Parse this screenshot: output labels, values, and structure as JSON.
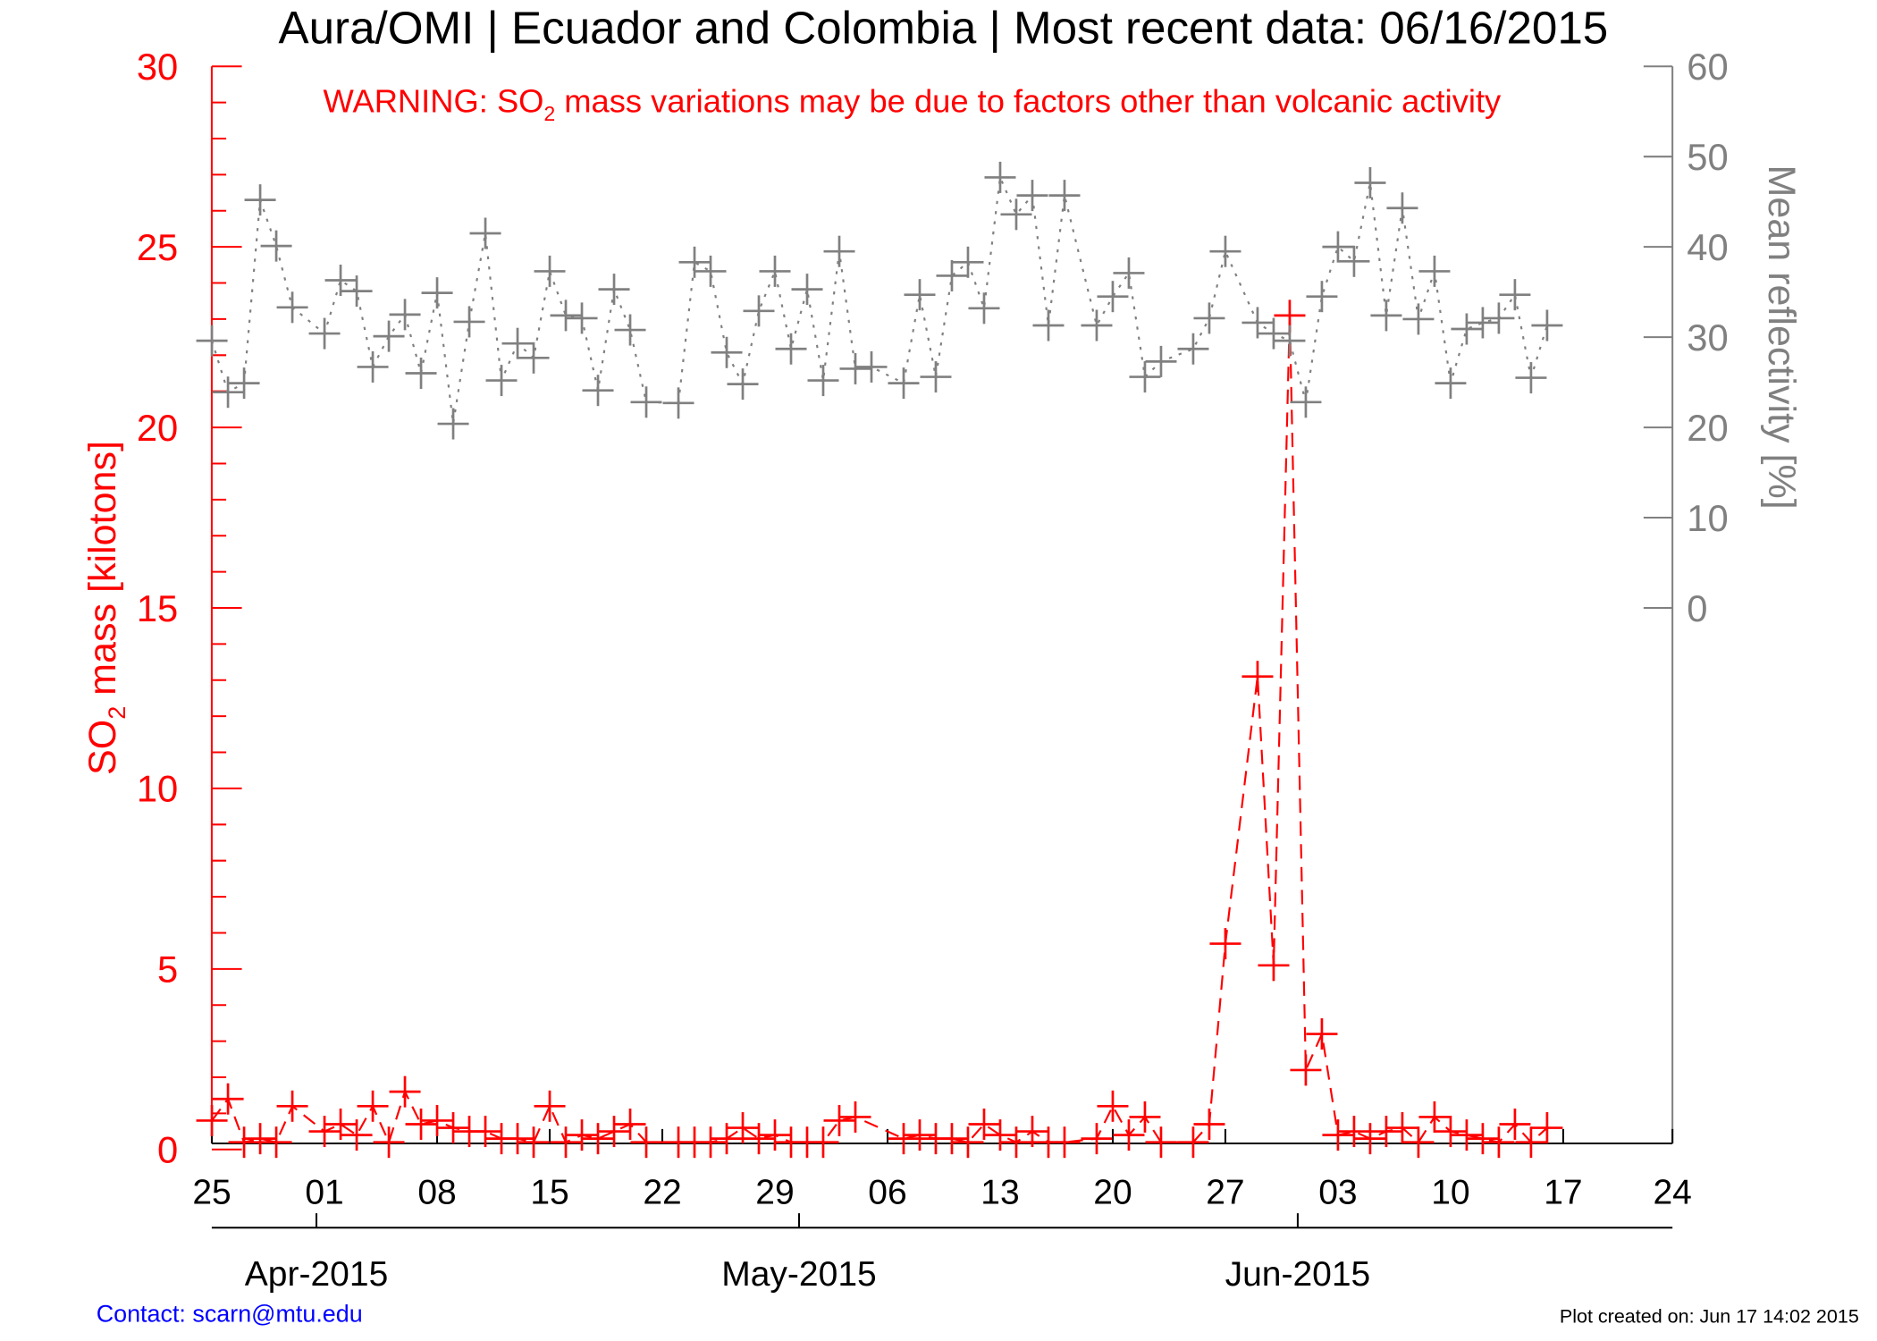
{
  "title": "Aura/OMI | Ecuador and Colombia | Most recent data: 06/16/2015",
  "warning": {
    "prefix": "WARNING: SO",
    "sub": "2",
    "suffix": " mass variations may be due to factors other than volcanic activity"
  },
  "contact": "Contact: scarn@mtu.edu",
  "plot_created": "Plot created on: Jun 17 14:02 2015",
  "colors": {
    "so2": "#ff0000",
    "reflectivity": "#808080",
    "contact": "#0000ff",
    "text": "#000000"
  },
  "chart_data": {
    "type": "line",
    "xlim": [
      "2015-03-25",
      "2015-06-24"
    ],
    "x_tick_labels": [
      "25",
      "01",
      "08",
      "15",
      "22",
      "29",
      "06",
      "13",
      "20",
      "27",
      "03",
      "10",
      "17",
      "24"
    ],
    "x_tick_dates": [
      "2015-03-25",
      "2015-04-01",
      "2015-04-08",
      "2015-04-15",
      "2015-04-22",
      "2015-04-29",
      "2015-05-06",
      "2015-05-13",
      "2015-05-20",
      "2015-05-27",
      "2015-06-03",
      "2015-06-10",
      "2015-06-17",
      "2015-06-24"
    ],
    "month_labels": [
      {
        "label": "Apr-2015",
        "date": "2015-04-01"
      },
      {
        "label": "May-2015",
        "date": "2015-05-01"
      },
      {
        "label": "Jun-2015",
        "date": "2015-06-01"
      }
    ],
    "left_axis": {
      "label_prefix": "SO",
      "label_sub": "2",
      "label_suffix": " mass [kilotons]",
      "ylim": [
        -0.17,
        30
      ],
      "tick_labels": [
        "0",
        "5",
        "10",
        "15",
        "20",
        "25",
        "30"
      ],
      "tick_values": [
        0,
        5,
        10,
        15,
        20,
        25,
        30
      ],
      "minor_step": 1
    },
    "right_axis": {
      "label": "Mean reflectivity [%]",
      "ylim": [
        -60,
        60
      ],
      "tick_labels": [
        "0",
        "10",
        "20",
        "30",
        "40",
        "50",
        "60"
      ],
      "tick_values": [
        0,
        10,
        20,
        30,
        40,
        50,
        60
      ]
    },
    "grid": false,
    "series": [
      {
        "axis": "left",
        "style": "dashed",
        "marker": "plus",
        "color": "#ff0000",
        "points": [
          [
            "2015-03-25",
            0.8
          ],
          [
            "2015-03-26",
            1.4
          ],
          [
            "2015-03-27",
            0.2
          ],
          [
            "2015-03-28",
            0.3
          ],
          [
            "2015-03-29",
            0.2
          ],
          [
            "2015-03-30",
            1.2
          ],
          [
            "2015-04-01",
            0.5
          ],
          [
            "2015-04-02",
            0.7
          ],
          [
            "2015-04-03",
            0.4
          ],
          [
            "2015-04-04",
            1.2
          ],
          [
            "2015-04-05",
            0.2
          ],
          [
            "2015-04-06",
            1.6
          ],
          [
            "2015-04-07",
            0.7
          ],
          [
            "2015-04-08",
            0.8
          ],
          [
            "2015-04-09",
            0.6
          ],
          [
            "2015-04-10",
            0.5
          ],
          [
            "2015-04-11",
            0.5
          ],
          [
            "2015-04-12",
            0.3
          ],
          [
            "2015-04-13",
            0.3
          ],
          [
            "2015-04-14",
            0.2
          ],
          [
            "2015-04-15",
            1.2
          ],
          [
            "2015-04-16",
            0.2
          ],
          [
            "2015-04-17",
            0.4
          ],
          [
            "2015-04-18",
            0.3
          ],
          [
            "2015-04-19",
            0.5
          ],
          [
            "2015-04-20",
            0.7
          ],
          [
            "2015-04-21",
            0.2
          ],
          [
            "2015-04-23",
            0.2
          ],
          [
            "2015-04-24",
            0.2
          ],
          [
            "2015-04-25",
            0.2
          ],
          [
            "2015-04-26",
            0.3
          ],
          [
            "2015-04-27",
            0.6
          ],
          [
            "2015-04-28",
            0.3
          ],
          [
            "2015-04-29",
            0.4
          ],
          [
            "2015-04-30",
            0.2
          ],
          [
            "2015-05-01",
            0.2
          ],
          [
            "2015-05-02",
            0.2
          ],
          [
            "2015-05-03",
            0.8
          ],
          [
            "2015-05-04",
            0.9
          ],
          [
            "2015-05-07",
            0.3
          ],
          [
            "2015-05-08",
            0.4
          ],
          [
            "2015-05-09",
            0.3
          ],
          [
            "2015-05-10",
            0.3
          ],
          [
            "2015-05-11",
            0.2
          ],
          [
            "2015-05-12",
            0.7
          ],
          [
            "2015-05-13",
            0.4
          ],
          [
            "2015-05-14",
            0.2
          ],
          [
            "2015-05-15",
            0.5
          ],
          [
            "2015-05-16",
            0.2
          ],
          [
            "2015-05-17",
            0.2
          ],
          [
            "2015-05-19",
            0.3
          ],
          [
            "2015-05-20",
            1.2
          ],
          [
            "2015-05-21",
            0.4
          ],
          [
            "2015-05-22",
            0.9
          ],
          [
            "2015-05-23",
            0.2
          ],
          [
            "2015-05-25",
            0.2
          ],
          [
            "2015-05-26",
            0.7
          ],
          [
            "2015-05-27",
            5.7
          ],
          [
            "2015-05-29",
            13.1
          ],
          [
            "2015-05-30",
            5.1
          ],
          [
            "2015-05-31",
            23.1
          ],
          [
            "2015-06-01",
            2.2
          ],
          [
            "2015-06-02",
            3.2
          ],
          [
            "2015-06-03",
            0.4
          ],
          [
            "2015-06-04",
            0.5
          ],
          [
            "2015-06-05",
            0.3
          ],
          [
            "2015-06-06",
            0.5
          ],
          [
            "2015-06-07",
            0.6
          ],
          [
            "2015-06-08",
            0.2
          ],
          [
            "2015-06-09",
            0.9
          ],
          [
            "2015-06-10",
            0.5
          ],
          [
            "2015-06-11",
            0.4
          ],
          [
            "2015-06-12",
            0.3
          ],
          [
            "2015-06-13",
            0.2
          ],
          [
            "2015-06-14",
            0.7
          ],
          [
            "2015-06-15",
            0.2
          ],
          [
            "2015-06-16",
            0.6
          ]
        ]
      },
      {
        "axis": "right",
        "style": "dotted",
        "marker": "plus",
        "color": "#808080",
        "points": [
          [
            "2015-03-25",
            29.6
          ],
          [
            "2015-03-26",
            23.9
          ],
          [
            "2015-03-27",
            24.9
          ],
          [
            "2015-03-28",
            45.2
          ],
          [
            "2015-03-29",
            40.1
          ],
          [
            "2015-03-30",
            33.3
          ],
          [
            "2015-04-01",
            30.4
          ],
          [
            "2015-04-02",
            36.3
          ],
          [
            "2015-04-03",
            35.1
          ],
          [
            "2015-04-04",
            26.7
          ],
          [
            "2015-04-05",
            30.1
          ],
          [
            "2015-04-06",
            32.5
          ],
          [
            "2015-04-07",
            26.0
          ],
          [
            "2015-04-08",
            34.9
          ],
          [
            "2015-04-09",
            20.4
          ],
          [
            "2015-04-10",
            31.7
          ],
          [
            "2015-04-11",
            41.5
          ],
          [
            "2015-04-12",
            25.2
          ],
          [
            "2015-04-13",
            29.3
          ],
          [
            "2015-04-14",
            27.7
          ],
          [
            "2015-04-15",
            37.3
          ],
          [
            "2015-04-16",
            32.4
          ],
          [
            "2015-04-17",
            32.1
          ],
          [
            "2015-04-18",
            24.1
          ],
          [
            "2015-04-19",
            35.3
          ],
          [
            "2015-04-20",
            30.8
          ],
          [
            "2015-04-21",
            22.8
          ],
          [
            "2015-04-23",
            22.7
          ],
          [
            "2015-04-24",
            38.3
          ],
          [
            "2015-04-25",
            37.3
          ],
          [
            "2015-04-26",
            28.3
          ],
          [
            "2015-04-27",
            24.8
          ],
          [
            "2015-04-28",
            32.9
          ],
          [
            "2015-04-29",
            37.3
          ],
          [
            "2015-04-30",
            28.7
          ],
          [
            "2015-05-01",
            35.3
          ],
          [
            "2015-05-02",
            25.2
          ],
          [
            "2015-05-03",
            39.5
          ],
          [
            "2015-05-04",
            26.5
          ],
          [
            "2015-05-05",
            26.7
          ],
          [
            "2015-05-07",
            24.9
          ],
          [
            "2015-05-08",
            34.7
          ],
          [
            "2015-05-09",
            25.6
          ],
          [
            "2015-05-10",
            36.8
          ],
          [
            "2015-05-11",
            38.3
          ],
          [
            "2015-05-12",
            33.2
          ],
          [
            "2015-05-13",
            47.7
          ],
          [
            "2015-05-14",
            43.6
          ],
          [
            "2015-05-15",
            45.7
          ],
          [
            "2015-05-16",
            31.3
          ],
          [
            "2015-05-17",
            45.7
          ],
          [
            "2015-05-19",
            31.3
          ],
          [
            "2015-05-20",
            34.5
          ],
          [
            "2015-05-21",
            37.1
          ],
          [
            "2015-05-22",
            25.6
          ],
          [
            "2015-05-23",
            27.3
          ],
          [
            "2015-05-25",
            28.7
          ],
          [
            "2015-05-26",
            32.1
          ],
          [
            "2015-05-27",
            39.5
          ],
          [
            "2015-05-29",
            31.6
          ],
          [
            "2015-05-30",
            30.4
          ],
          [
            "2015-05-31",
            29.6
          ],
          [
            "2015-06-01",
            22.8
          ],
          [
            "2015-06-02",
            34.5
          ],
          [
            "2015-06-03",
            40.0
          ],
          [
            "2015-06-04",
            38.4
          ],
          [
            "2015-06-05",
            47.1
          ],
          [
            "2015-06-06",
            32.4
          ],
          [
            "2015-06-07",
            44.3
          ],
          [
            "2015-06-08",
            32.0
          ],
          [
            "2015-06-09",
            37.3
          ],
          [
            "2015-06-10",
            24.9
          ],
          [
            "2015-06-11",
            30.9
          ],
          [
            "2015-06-12",
            31.6
          ],
          [
            "2015-06-13",
            32.1
          ],
          [
            "2015-06-14",
            34.7
          ],
          [
            "2015-06-15",
            25.5
          ],
          [
            "2015-06-16",
            31.3
          ]
        ]
      }
    ]
  }
}
